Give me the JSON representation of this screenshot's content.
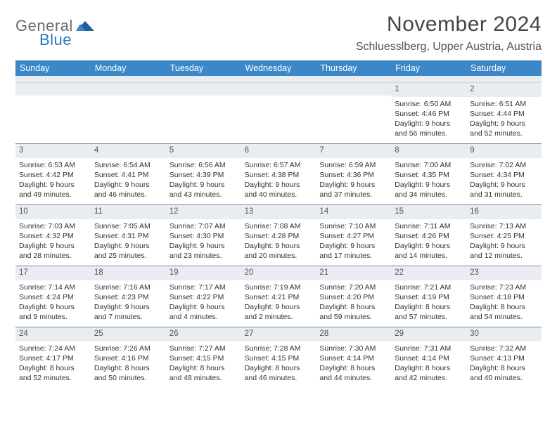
{
  "logo": {
    "part1": "General",
    "part2": "Blue",
    "text_color1": "#6b6b6b",
    "text_color2": "#2a79bd",
    "wing_color": "#1f5f9e"
  },
  "header": {
    "month_title": "November 2024",
    "location": "Schluesslberg, Upper Austria, Austria"
  },
  "colors": {
    "header_bar": "#3b87c8",
    "header_text": "#ffffff",
    "daynum_bg": "#e9edf1",
    "divider": "#7a8aa0",
    "body_text": "#333333"
  },
  "days_of_week": [
    "Sunday",
    "Monday",
    "Tuesday",
    "Wednesday",
    "Thursday",
    "Friday",
    "Saturday"
  ],
  "weeks": [
    [
      {
        "n": "",
        "sunrise": "",
        "sunset": "",
        "daylight": ""
      },
      {
        "n": "",
        "sunrise": "",
        "sunset": "",
        "daylight": ""
      },
      {
        "n": "",
        "sunrise": "",
        "sunset": "",
        "daylight": ""
      },
      {
        "n": "",
        "sunrise": "",
        "sunset": "",
        "daylight": ""
      },
      {
        "n": "",
        "sunrise": "",
        "sunset": "",
        "daylight": ""
      },
      {
        "n": "1",
        "sunrise": "Sunrise: 6:50 AM",
        "sunset": "Sunset: 4:46 PM",
        "daylight": "Daylight: 9 hours and 56 minutes."
      },
      {
        "n": "2",
        "sunrise": "Sunrise: 6:51 AM",
        "sunset": "Sunset: 4:44 PM",
        "daylight": "Daylight: 9 hours and 52 minutes."
      }
    ],
    [
      {
        "n": "3",
        "sunrise": "Sunrise: 6:53 AM",
        "sunset": "Sunset: 4:42 PM",
        "daylight": "Daylight: 9 hours and 49 minutes."
      },
      {
        "n": "4",
        "sunrise": "Sunrise: 6:54 AM",
        "sunset": "Sunset: 4:41 PM",
        "daylight": "Daylight: 9 hours and 46 minutes."
      },
      {
        "n": "5",
        "sunrise": "Sunrise: 6:56 AM",
        "sunset": "Sunset: 4:39 PM",
        "daylight": "Daylight: 9 hours and 43 minutes."
      },
      {
        "n": "6",
        "sunrise": "Sunrise: 6:57 AM",
        "sunset": "Sunset: 4:38 PM",
        "daylight": "Daylight: 9 hours and 40 minutes."
      },
      {
        "n": "7",
        "sunrise": "Sunrise: 6:59 AM",
        "sunset": "Sunset: 4:36 PM",
        "daylight": "Daylight: 9 hours and 37 minutes."
      },
      {
        "n": "8",
        "sunrise": "Sunrise: 7:00 AM",
        "sunset": "Sunset: 4:35 PM",
        "daylight": "Daylight: 9 hours and 34 minutes."
      },
      {
        "n": "9",
        "sunrise": "Sunrise: 7:02 AM",
        "sunset": "Sunset: 4:34 PM",
        "daylight": "Daylight: 9 hours and 31 minutes."
      }
    ],
    [
      {
        "n": "10",
        "sunrise": "Sunrise: 7:03 AM",
        "sunset": "Sunset: 4:32 PM",
        "daylight": "Daylight: 9 hours and 28 minutes."
      },
      {
        "n": "11",
        "sunrise": "Sunrise: 7:05 AM",
        "sunset": "Sunset: 4:31 PM",
        "daylight": "Daylight: 9 hours and 25 minutes."
      },
      {
        "n": "12",
        "sunrise": "Sunrise: 7:07 AM",
        "sunset": "Sunset: 4:30 PM",
        "daylight": "Daylight: 9 hours and 23 minutes."
      },
      {
        "n": "13",
        "sunrise": "Sunrise: 7:08 AM",
        "sunset": "Sunset: 4:28 PM",
        "daylight": "Daylight: 9 hours and 20 minutes."
      },
      {
        "n": "14",
        "sunrise": "Sunrise: 7:10 AM",
        "sunset": "Sunset: 4:27 PM",
        "daylight": "Daylight: 9 hours and 17 minutes."
      },
      {
        "n": "15",
        "sunrise": "Sunrise: 7:11 AM",
        "sunset": "Sunset: 4:26 PM",
        "daylight": "Daylight: 9 hours and 14 minutes."
      },
      {
        "n": "16",
        "sunrise": "Sunrise: 7:13 AM",
        "sunset": "Sunset: 4:25 PM",
        "daylight": "Daylight: 9 hours and 12 minutes."
      }
    ],
    [
      {
        "n": "17",
        "sunrise": "Sunrise: 7:14 AM",
        "sunset": "Sunset: 4:24 PM",
        "daylight": "Daylight: 9 hours and 9 minutes."
      },
      {
        "n": "18",
        "sunrise": "Sunrise: 7:16 AM",
        "sunset": "Sunset: 4:23 PM",
        "daylight": "Daylight: 9 hours and 7 minutes."
      },
      {
        "n": "19",
        "sunrise": "Sunrise: 7:17 AM",
        "sunset": "Sunset: 4:22 PM",
        "daylight": "Daylight: 9 hours and 4 minutes."
      },
      {
        "n": "20",
        "sunrise": "Sunrise: 7:19 AM",
        "sunset": "Sunset: 4:21 PM",
        "daylight": "Daylight: 9 hours and 2 minutes."
      },
      {
        "n": "21",
        "sunrise": "Sunrise: 7:20 AM",
        "sunset": "Sunset: 4:20 PM",
        "daylight": "Daylight: 8 hours and 59 minutes."
      },
      {
        "n": "22",
        "sunrise": "Sunrise: 7:21 AM",
        "sunset": "Sunset: 4:19 PM",
        "daylight": "Daylight: 8 hours and 57 minutes."
      },
      {
        "n": "23",
        "sunrise": "Sunrise: 7:23 AM",
        "sunset": "Sunset: 4:18 PM",
        "daylight": "Daylight: 8 hours and 54 minutes."
      }
    ],
    [
      {
        "n": "24",
        "sunrise": "Sunrise: 7:24 AM",
        "sunset": "Sunset: 4:17 PM",
        "daylight": "Daylight: 8 hours and 52 minutes."
      },
      {
        "n": "25",
        "sunrise": "Sunrise: 7:26 AM",
        "sunset": "Sunset: 4:16 PM",
        "daylight": "Daylight: 8 hours and 50 minutes."
      },
      {
        "n": "26",
        "sunrise": "Sunrise: 7:27 AM",
        "sunset": "Sunset: 4:15 PM",
        "daylight": "Daylight: 8 hours and 48 minutes."
      },
      {
        "n": "27",
        "sunrise": "Sunrise: 7:28 AM",
        "sunset": "Sunset: 4:15 PM",
        "daylight": "Daylight: 8 hours and 46 minutes."
      },
      {
        "n": "28",
        "sunrise": "Sunrise: 7:30 AM",
        "sunset": "Sunset: 4:14 PM",
        "daylight": "Daylight: 8 hours and 44 minutes."
      },
      {
        "n": "29",
        "sunrise": "Sunrise: 7:31 AM",
        "sunset": "Sunset: 4:14 PM",
        "daylight": "Daylight: 8 hours and 42 minutes."
      },
      {
        "n": "30",
        "sunrise": "Sunrise: 7:32 AM",
        "sunset": "Sunset: 4:13 PM",
        "daylight": "Daylight: 8 hours and 40 minutes."
      }
    ]
  ]
}
